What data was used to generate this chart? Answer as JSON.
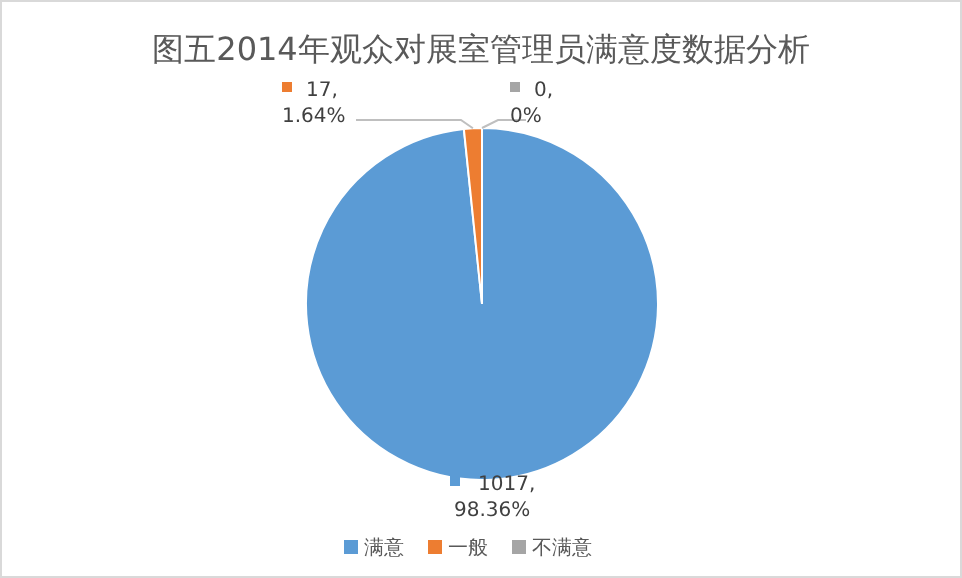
{
  "chart_data": {
    "type": "pie",
    "title": "图五2014年观众对展室管理员满意度数据分析",
    "categories": [
      "满意",
      "一般",
      "不满意"
    ],
    "values": [
      1017,
      17,
      0
    ],
    "colors": [
      "#5b9bd5",
      "#ed7d31",
      "#a5a5a5"
    ],
    "value_labels": [
      "1017, 98.36%",
      "17, 1.64%",
      "0, 0%"
    ],
    "legend": "bottom"
  }
}
